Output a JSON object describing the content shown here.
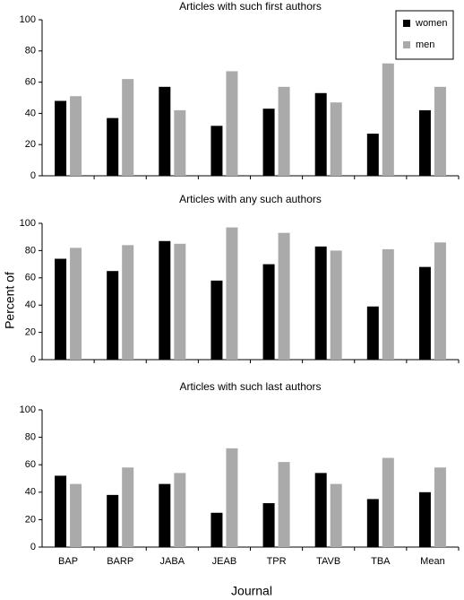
{
  "ylabel": "Percent of",
  "xlabel": "Journal",
  "chart_data": [
    {
      "type": "bar",
      "title": "Articles with such first authors",
      "categories": [
        null,
        null,
        null,
        null,
        null,
        null,
        null,
        null
      ],
      "series": [
        {
          "name": "women",
          "color": "#000000",
          "values": [
            48,
            37,
            57,
            32,
            43,
            53,
            27,
            42
          ]
        },
        {
          "name": "men",
          "color": "#aaaaaa",
          "values": [
            51,
            62,
            42,
            67,
            57,
            47,
            72,
            57
          ]
        }
      ],
      "ylim": [
        0,
        100
      ],
      "yticks": [
        0,
        20,
        40,
        60,
        80,
        100
      ],
      "legend": "upper right"
    },
    {
      "type": "bar",
      "title": "Articles with any such authors",
      "categories": [
        null,
        null,
        null,
        null,
        null,
        null,
        null,
        null
      ],
      "series": [
        {
          "color": "#000000",
          "values": [
            74,
            65,
            87,
            58,
            70,
            83,
            39,
            68
          ]
        },
        {
          "color": "#aaaaaa",
          "values": [
            82,
            84,
            85,
            97,
            93,
            80,
            81,
            86
          ]
        }
      ],
      "ylim": [
        0,
        100
      ],
      "yticks": [
        0,
        20,
        40,
        60,
        80,
        100
      ]
    },
    {
      "type": "bar",
      "title": "Articles with such last authors",
      "categories": [
        "BAP",
        "BARP",
        "JABA",
        "JEAB",
        "TPR",
        "TAVB",
        "TBA",
        "Mean"
      ],
      "series": [
        {
          "color": "#000000",
          "values": [
            52,
            38,
            46,
            25,
            32,
            54,
            35,
            40
          ]
        },
        {
          "color": "#aaaaaa",
          "values": [
            46,
            58,
            54,
            72,
            62,
            46,
            65,
            58
          ]
        }
      ],
      "ylim": [
        0,
        100
      ],
      "yticks": [
        0,
        20,
        40,
        60,
        80,
        100
      ]
    }
  ]
}
